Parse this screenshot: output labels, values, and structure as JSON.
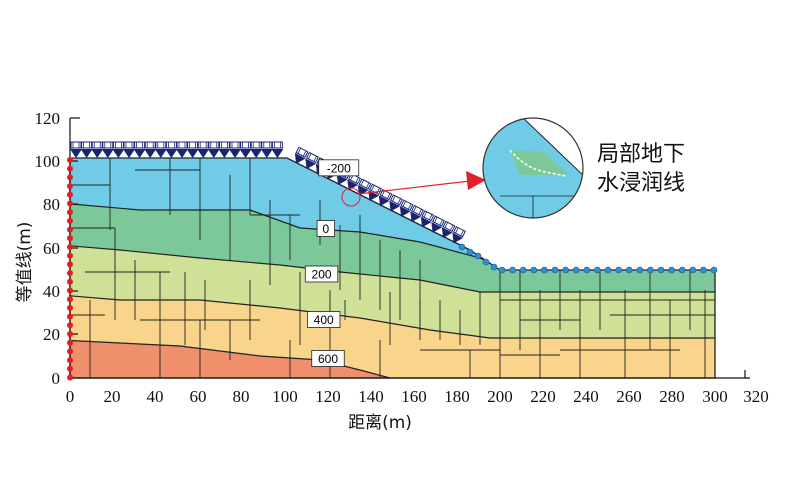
{
  "axes": {
    "x_ticks": [
      "0",
      "20",
      "40",
      "60",
      "80",
      "100",
      "120",
      "140",
      "160",
      "180",
      "200",
      "220",
      "240",
      "260",
      "280",
      "300",
      "320"
    ],
    "y_ticks": [
      "0",
      "20",
      "40",
      "60",
      "80",
      "100",
      "120"
    ],
    "ylabel": "等值线(m)",
    "xlabel": "距离(m)"
  },
  "contour_labels": [
    {
      "text": "-200",
      "x": 125,
      "y": 97
    },
    {
      "text": "0",
      "x": 119,
      "y": 69
    },
    {
      "text": "200",
      "x": 117,
      "y": 48
    },
    {
      "text": "400",
      "x": 118,
      "y": 27
    },
    {
      "text": "600",
      "x": 120,
      "y": 9
    }
  ],
  "callout": {
    "line1": "局部地下",
    "line2": "水浸润线"
  },
  "colors": {
    "band_top": "#6fcbe6",
    "band_0": "#7cc89b",
    "band_200": "#cfe197",
    "band_400": "#f9d48b",
    "band_600": "#f08f6c",
    "arrow_load": "#1b2472",
    "left_boundary": "#e02020",
    "slope_nodes": "#2f8ed6",
    "callout_line": "#e0202a"
  }
}
